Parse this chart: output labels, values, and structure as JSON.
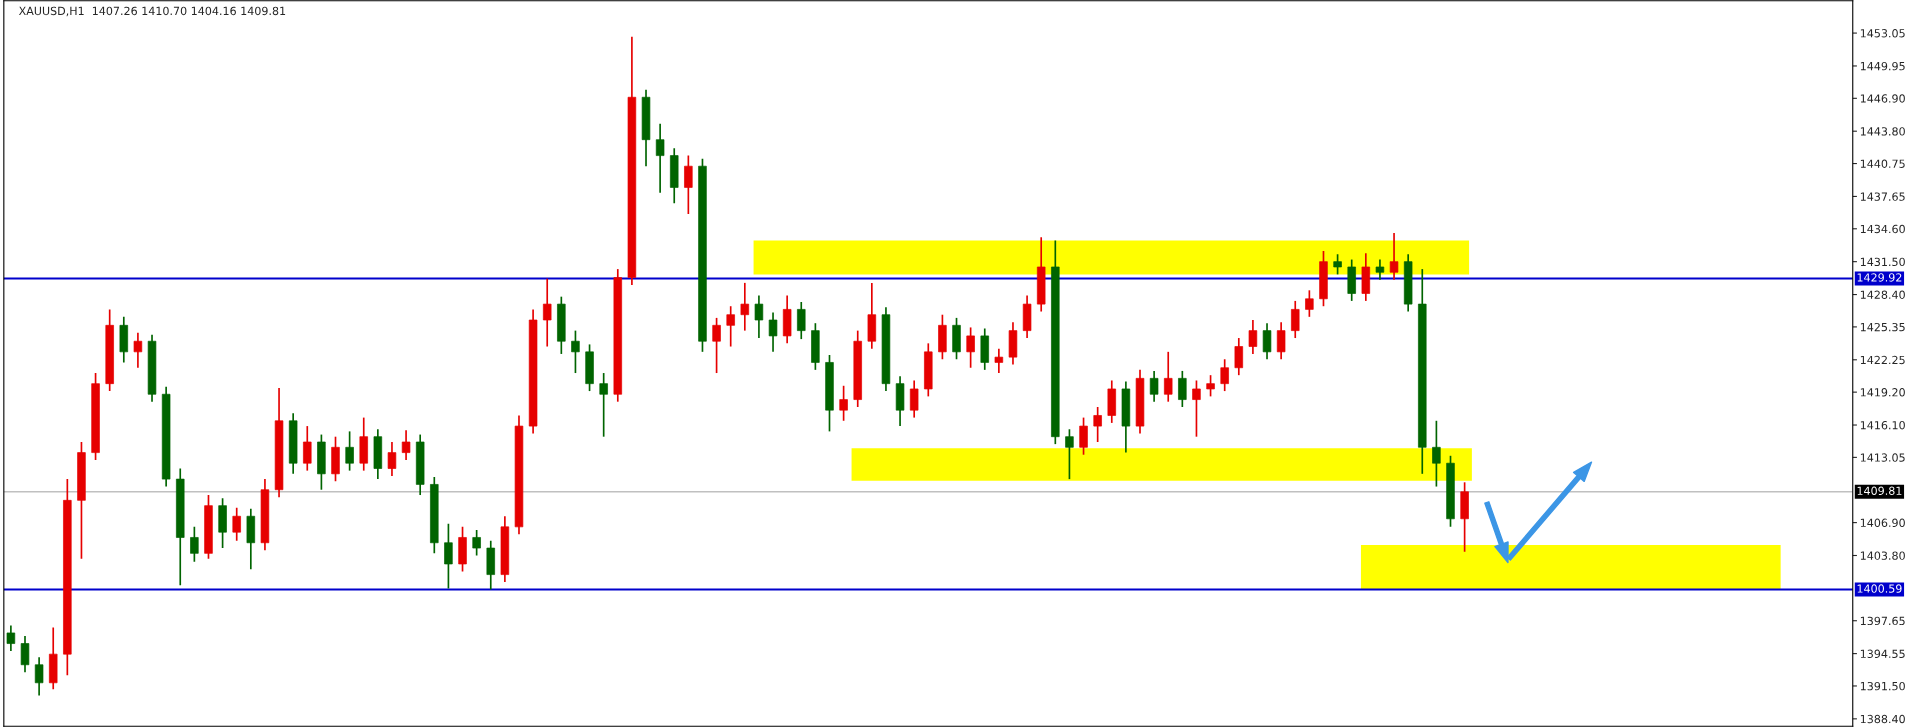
{
  "chart_data": {
    "type": "candlestick",
    "title": "XAUUSD,H1  1407.26 1410.70 1404.16 1409.81",
    "categories": [
      null,
      null,
      null,
      null,
      null,
      null,
      null,
      null,
      null,
      null,
      null,
      null,
      null,
      null,
      null,
      null,
      null,
      null,
      null,
      null,
      null,
      null,
      null,
      null,
      null,
      null,
      null,
      null,
      null,
      null,
      null,
      null,
      null,
      null,
      null,
      null,
      null,
      null,
      null,
      null,
      null,
      null,
      null,
      null,
      null,
      null,
      null,
      null,
      null,
      null,
      null,
      null,
      null,
      null,
      null,
      null,
      null,
      null,
      null,
      null,
      null,
      null,
      null,
      null,
      null,
      null,
      null,
      null,
      null,
      null,
      null,
      null,
      null,
      null,
      null,
      null,
      null,
      null,
      null,
      null,
      null,
      null,
      null,
      null,
      null,
      null,
      null,
      null,
      null,
      null,
      null,
      null,
      null,
      null,
      null,
      null,
      null,
      null,
      null,
      null,
      null,
      null,
      null,
      null,
      null,
      null,
      null,
      null,
      null,
      null,
      null,
      null,
      null,
      null,
      null,
      null,
      null,
      null,
      null,
      null,
      null,
      null,
      null,
      null,
      null,
      null,
      null,
      null,
      null,
      null,
      null
    ],
    "ohlc": [
      [
        1396.5,
        1397.2,
        1394.8,
        1395.5
      ],
      [
        1395.5,
        1396.2,
        1392.8,
        1393.5
      ],
      [
        1393.5,
        1394.2,
        1390.6,
        1391.8
      ],
      [
        1391.8,
        1397.0,
        1391.2,
        1394.5
      ],
      [
        1394.5,
        1411.0,
        1392.5,
        1409.0
      ],
      [
        1409.0,
        1414.5,
        1403.5,
        1413.5
      ],
      [
        1413.5,
        1421.0,
        1412.8,
        1420.0
      ],
      [
        1420.0,
        1427.0,
        1419.3,
        1425.5
      ],
      [
        1425.5,
        1426.3,
        1422.0,
        1423.0
      ],
      [
        1423.0,
        1424.8,
        1421.5,
        1424.0
      ],
      [
        1424.0,
        1424.6,
        1418.3,
        1419.0
      ],
      [
        1419.0,
        1419.7,
        1410.3,
        1411.0
      ],
      [
        1411.0,
        1412.0,
        1401.0,
        1405.5
      ],
      [
        1405.5,
        1406.5,
        1403.2,
        1404.0
      ],
      [
        1404.0,
        1409.5,
        1403.5,
        1408.5
      ],
      [
        1408.5,
        1409.2,
        1404.5,
        1406.0
      ],
      [
        1406.0,
        1408.3,
        1405.2,
        1407.5
      ],
      [
        1407.5,
        1408.2,
        1402.5,
        1405.0
      ],
      [
        1405.0,
        1411.0,
        1404.3,
        1410.0
      ],
      [
        1410.0,
        1419.6,
        1409.3,
        1416.5
      ],
      [
        1416.5,
        1417.2,
        1411.5,
        1412.5
      ],
      [
        1412.5,
        1416.0,
        1411.8,
        1414.5
      ],
      [
        1414.5,
        1415.2,
        1410.0,
        1411.5
      ],
      [
        1411.5,
        1415.0,
        1410.8,
        1414.0
      ],
      [
        1414.0,
        1415.5,
        1411.8,
        1412.5
      ],
      [
        1412.5,
        1416.8,
        1411.8,
        1415.0
      ],
      [
        1415.0,
        1415.7,
        1411.0,
        1412.0
      ],
      [
        1412.0,
        1414.5,
        1411.3,
        1413.5
      ],
      [
        1413.5,
        1415.6,
        1412.8,
        1414.5
      ],
      [
        1414.5,
        1415.2,
        1409.5,
        1410.5
      ],
      [
        1410.5,
        1411.2,
        1404.0,
        1405.0
      ],
      [
        1405.0,
        1406.8,
        1400.7,
        1403.0
      ],
      [
        1403.0,
        1406.5,
        1402.3,
        1405.5
      ],
      [
        1405.5,
        1406.2,
        1403.8,
        1404.5
      ],
      [
        1404.5,
        1405.2,
        1400.6,
        1402.0
      ],
      [
        1402.0,
        1407.5,
        1401.3,
        1406.5
      ],
      [
        1406.5,
        1417.0,
        1405.8,
        1416.0
      ],
      [
        1416.0,
        1427.0,
        1415.3,
        1426.0
      ],
      [
        1426.0,
        1429.9,
        1423.5,
        1427.5
      ],
      [
        1427.5,
        1428.2,
        1422.8,
        1424.0
      ],
      [
        1424.0,
        1425.0,
        1421.0,
        1423.0
      ],
      [
        1423.0,
        1423.7,
        1419.3,
        1420.0
      ],
      [
        1420.0,
        1421.0,
        1415.0,
        1419.0
      ],
      [
        1419.0,
        1430.8,
        1418.3,
        1430.0
      ],
      [
        1430.0,
        1452.7,
        1429.3,
        1447.0
      ],
      [
        1447.0,
        1447.7,
        1440.5,
        1443.0
      ],
      [
        1443.0,
        1444.5,
        1438.0,
        1441.5
      ],
      [
        1441.5,
        1442.2,
        1437.0,
        1438.5
      ],
      [
        1438.5,
        1441.5,
        1436.0,
        1440.5
      ],
      [
        1440.5,
        1441.2,
        1423.0,
        1424.0
      ],
      [
        1424.0,
        1426.2,
        1421.0,
        1425.5
      ],
      [
        1425.5,
        1427.3,
        1423.5,
        1426.5
      ],
      [
        1426.5,
        1429.5,
        1425.0,
        1427.5
      ],
      [
        1427.5,
        1428.3,
        1424.3,
        1426.0
      ],
      [
        1426.0,
        1426.7,
        1423.0,
        1424.5
      ],
      [
        1424.5,
        1428.3,
        1423.8,
        1427.0
      ],
      [
        1427.0,
        1427.7,
        1424.2,
        1425.0
      ],
      [
        1425.0,
        1425.7,
        1421.3,
        1422.0
      ],
      [
        1422.0,
        1422.7,
        1415.5,
        1417.5
      ],
      [
        1417.5,
        1419.8,
        1416.5,
        1418.5
      ],
      [
        1418.5,
        1425.0,
        1417.8,
        1424.0
      ],
      [
        1424.0,
        1429.5,
        1423.3,
        1426.5
      ],
      [
        1426.5,
        1427.2,
        1419.3,
        1420.0
      ],
      [
        1420.0,
        1420.7,
        1416.0,
        1417.5
      ],
      [
        1417.5,
        1420.3,
        1416.8,
        1419.5
      ],
      [
        1419.5,
        1423.8,
        1418.8,
        1423.0
      ],
      [
        1423.0,
        1426.5,
        1422.3,
        1425.5
      ],
      [
        1425.5,
        1426.2,
        1422.3,
        1423.0
      ],
      [
        1423.0,
        1425.3,
        1421.5,
        1424.5
      ],
      [
        1424.5,
        1425.2,
        1421.3,
        1422.0
      ],
      [
        1422.0,
        1423.3,
        1421.0,
        1422.5
      ],
      [
        1422.5,
        1425.8,
        1421.8,
        1425.0
      ],
      [
        1425.0,
        1428.3,
        1424.3,
        1427.5
      ],
      [
        1427.5,
        1433.8,
        1426.8,
        1431.0
      ],
      [
        1431.0,
        1433.5,
        1414.3,
        1415.0
      ],
      [
        1415.0,
        1415.7,
        1411.0,
        1414.0
      ],
      [
        1414.0,
        1416.8,
        1413.3,
        1416.0
      ],
      [
        1416.0,
        1417.8,
        1414.5,
        1417.0
      ],
      [
        1417.0,
        1420.3,
        1416.3,
        1419.5
      ],
      [
        1419.5,
        1420.2,
        1413.5,
        1416.0
      ],
      [
        1416.0,
        1421.3,
        1415.3,
        1420.5
      ],
      [
        1420.5,
        1421.2,
        1418.3,
        1419.0
      ],
      [
        1419.0,
        1423.0,
        1418.3,
        1420.5
      ],
      [
        1420.5,
        1421.2,
        1417.8,
        1418.5
      ],
      [
        1418.5,
        1420.3,
        1415.0,
        1419.5
      ],
      [
        1419.5,
        1420.8,
        1418.8,
        1420.0
      ],
      [
        1420.0,
        1422.3,
        1419.3,
        1421.5
      ],
      [
        1421.5,
        1424.3,
        1420.8,
        1423.5
      ],
      [
        1423.5,
        1426.0,
        1422.8,
        1425.0
      ],
      [
        1425.0,
        1425.7,
        1422.3,
        1423.0
      ],
      [
        1423.0,
        1425.8,
        1422.3,
        1425.0
      ],
      [
        1425.0,
        1427.8,
        1424.3,
        1427.0
      ],
      [
        1427.0,
        1428.8,
        1426.3,
        1428.0
      ],
      [
        1428.0,
        1432.5,
        1427.3,
        1431.5
      ],
      [
        1431.5,
        1432.2,
        1430.3,
        1431.0
      ],
      [
        1431.0,
        1431.7,
        1427.8,
        1428.5
      ],
      [
        1428.5,
        1432.3,
        1427.8,
        1431.0
      ],
      [
        1431.0,
        1431.7,
        1429.8,
        1430.5
      ],
      [
        1430.5,
        1434.2,
        1429.8,
        1431.5
      ],
      [
        1431.5,
        1432.2,
        1426.8,
        1427.5
      ],
      [
        1427.5,
        1430.8,
        1411.5,
        1414.0
      ],
      [
        1414.0,
        1416.5,
        1410.3,
        1412.5
      ],
      [
        1412.5,
        1413.2,
        1406.5,
        1407.26
      ],
      [
        1407.26,
        1410.7,
        1404.16,
        1409.81
      ],
      null,
      null,
      null,
      null,
      null,
      null,
      null,
      null,
      null,
      null,
      null,
      null,
      null,
      null,
      null,
      null,
      null,
      null,
      null,
      null,
      null,
      null,
      null,
      null,
      null,
      null,
      null
    ],
    "colors": [
      "#006400",
      "#006400",
      "#006400",
      "#e60000",
      "#e60000",
      "#e60000",
      "#e60000",
      "#e60000",
      "#006400",
      "#e60000",
      "#006400",
      "#006400",
      "#006400",
      "#006400",
      "#e60000",
      "#006400",
      "#e60000",
      "#006400",
      "#e60000",
      "#e60000",
      "#006400",
      "#e60000",
      "#006400",
      "#e60000",
      "#006400",
      "#e60000",
      "#006400",
      "#e60000",
      "#e60000",
      "#006400",
      "#006400",
      "#006400",
      "#e60000",
      "#006400",
      "#006400",
      "#e60000",
      "#e60000",
      "#e60000",
      "#e60000",
      "#006400",
      "#006400",
      "#006400",
      "#006400",
      "#e60000",
      "#e60000",
      "#006400",
      "#006400",
      "#006400",
      "#e60000",
      "#006400",
      "#e60000",
      "#e60000",
      "#e60000",
      "#006400",
      "#006400",
      "#e60000",
      "#006400",
      "#006400",
      "#006400",
      "#e60000",
      "#e60000",
      "#e60000",
      "#006400",
      "#006400",
      "#e60000",
      "#e60000",
      "#e60000",
      "#006400",
      "#e60000",
      "#006400",
      "#e60000",
      "#e60000",
      "#e60000",
      "#e60000",
      "#006400",
      "#006400",
      "#e60000",
      "#e60000",
      "#e60000",
      "#006400",
      "#e60000",
      "#006400",
      "#e60000",
      "#006400",
      "#e60000",
      "#e60000",
      "#e60000",
      "#e60000",
      "#e60000",
      "#006400",
      "#e60000",
      "#e60000",
      "#e60000",
      "#e60000",
      "#006400",
      "#006400",
      "#e60000",
      "#006400",
      "#e60000",
      "#006400",
      "#006400",
      "#006400",
      "#006400",
      "#e60000",
      null,
      null,
      null,
      null,
      null,
      null,
      null,
      null,
      null,
      null,
      null,
      null,
      null,
      null,
      null,
      null,
      null,
      null,
      null,
      null,
      null,
      null,
      null,
      null,
      null,
      null,
      null
    ],
    "ylim": [
      1387.7,
      1456.1
    ],
    "yticks": [
      {
        "value": 1453.05,
        "label": "1453.05"
      },
      {
        "value": 1449.95,
        "label": "1449.95"
      },
      {
        "value": 1446.9,
        "label": "1446.90"
      },
      {
        "value": 1443.8,
        "label": "1443.80"
      },
      {
        "value": 1440.75,
        "label": "1440.75"
      },
      {
        "value": 1437.65,
        "label": "1437.65"
      },
      {
        "value": 1434.6,
        "label": "1434.60"
      },
      {
        "value": 1431.5,
        "label": "1431.50"
      },
      {
        "value": 1428.4,
        "label": "1428.40"
      },
      {
        "value": 1425.35,
        "label": "1425.35"
      },
      {
        "value": 1422.25,
        "label": "1422.25"
      },
      {
        "value": 1419.2,
        "label": "1419.20"
      },
      {
        "value": 1416.1,
        "label": "1416.10"
      },
      {
        "value": 1413.05,
        "label": "1413.05"
      },
      {
        "value": 1406.9,
        "label": "1406.90"
      },
      {
        "value": 1403.8,
        "label": "1403.80"
      },
      {
        "value": 1397.65,
        "label": "1397.65"
      },
      {
        "value": 1394.55,
        "label": "1394.55"
      },
      {
        "value": 1391.5,
        "label": "1391.50"
      },
      {
        "value": 1388.4,
        "label": "1388.40"
      }
    ],
    "tick_labels": "y",
    "grid": false,
    "ref_lines": [
      {
        "axis": "y",
        "value": 1429.92,
        "label": "1429.92",
        "color": "#0000cc"
      },
      {
        "axis": "y",
        "value": 1400.59,
        "label": "1400.59",
        "color": "#0000cc"
      },
      {
        "axis": "y",
        "value": 1409.81,
        "label": "1409.81",
        "color": "#c0c0c0"
      }
    ],
    "bands": [
      {
        "axis": "y",
        "from": 1430.3,
        "to": 1433.5,
        "color": "#ffff00"
      },
      {
        "axis": "y",
        "from": 1410.85,
        "to": 1413.9,
        "color": "#ffff00"
      },
      {
        "axis": "y",
        "from": 1400.6,
        "to": 1404.8,
        "color": "#ffff00"
      }
    ]
  }
}
